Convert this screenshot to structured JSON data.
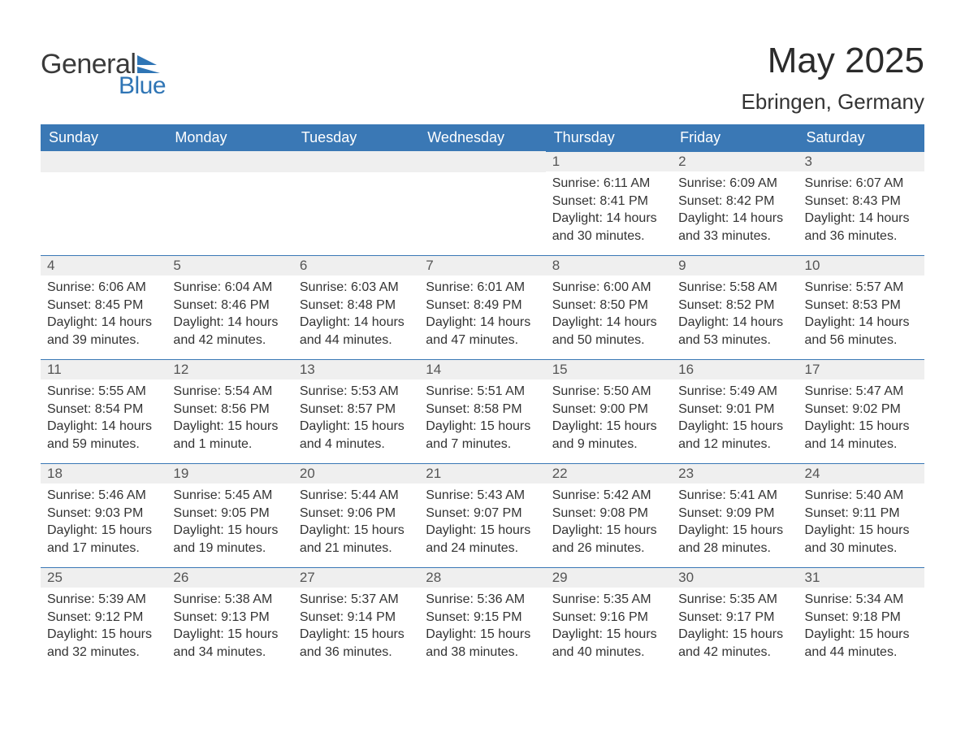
{
  "brand": {
    "word1": "General",
    "word2": "Blue",
    "text_color": "#3a3a3a",
    "accent_color": "#2f75b5"
  },
  "title": "May 2025",
  "location": "Ebringen, Germany",
  "colors": {
    "header_bg": "#3a78b5",
    "header_text": "#ffffff",
    "day_header_bg": "#efefef",
    "day_header_border": "#3a78b5",
    "text": "#333333",
    "background": "#ffffff"
  },
  "font": {
    "family": "Arial",
    "title_size_pt": 33,
    "location_size_pt": 20,
    "dayname_size_pt": 14,
    "body_size_pt": 12
  },
  "day_names": [
    "Sunday",
    "Monday",
    "Tuesday",
    "Wednesday",
    "Thursday",
    "Friday",
    "Saturday"
  ],
  "labels": {
    "sunrise": "Sunrise",
    "sunset": "Sunset",
    "daylight": "Daylight"
  },
  "weeks": [
    [
      null,
      null,
      null,
      null,
      {
        "n": "1",
        "sunrise": "6:11 AM",
        "sunset": "8:41 PM",
        "daylight": "14 hours and 30 minutes."
      },
      {
        "n": "2",
        "sunrise": "6:09 AM",
        "sunset": "8:42 PM",
        "daylight": "14 hours and 33 minutes."
      },
      {
        "n": "3",
        "sunrise": "6:07 AM",
        "sunset": "8:43 PM",
        "daylight": "14 hours and 36 minutes."
      }
    ],
    [
      {
        "n": "4",
        "sunrise": "6:06 AM",
        "sunset": "8:45 PM",
        "daylight": "14 hours and 39 minutes."
      },
      {
        "n": "5",
        "sunrise": "6:04 AM",
        "sunset": "8:46 PM",
        "daylight": "14 hours and 42 minutes."
      },
      {
        "n": "6",
        "sunrise": "6:03 AM",
        "sunset": "8:48 PM",
        "daylight": "14 hours and 44 minutes."
      },
      {
        "n": "7",
        "sunrise": "6:01 AM",
        "sunset": "8:49 PM",
        "daylight": "14 hours and 47 minutes."
      },
      {
        "n": "8",
        "sunrise": "6:00 AM",
        "sunset": "8:50 PM",
        "daylight": "14 hours and 50 minutes."
      },
      {
        "n": "9",
        "sunrise": "5:58 AM",
        "sunset": "8:52 PM",
        "daylight": "14 hours and 53 minutes."
      },
      {
        "n": "10",
        "sunrise": "5:57 AM",
        "sunset": "8:53 PM",
        "daylight": "14 hours and 56 minutes."
      }
    ],
    [
      {
        "n": "11",
        "sunrise": "5:55 AM",
        "sunset": "8:54 PM",
        "daylight": "14 hours and 59 minutes."
      },
      {
        "n": "12",
        "sunrise": "5:54 AM",
        "sunset": "8:56 PM",
        "daylight": "15 hours and 1 minute."
      },
      {
        "n": "13",
        "sunrise": "5:53 AM",
        "sunset": "8:57 PM",
        "daylight": "15 hours and 4 minutes."
      },
      {
        "n": "14",
        "sunrise": "5:51 AM",
        "sunset": "8:58 PM",
        "daylight": "15 hours and 7 minutes."
      },
      {
        "n": "15",
        "sunrise": "5:50 AM",
        "sunset": "9:00 PM",
        "daylight": "15 hours and 9 minutes."
      },
      {
        "n": "16",
        "sunrise": "5:49 AM",
        "sunset": "9:01 PM",
        "daylight": "15 hours and 12 minutes."
      },
      {
        "n": "17",
        "sunrise": "5:47 AM",
        "sunset": "9:02 PM",
        "daylight": "15 hours and 14 minutes."
      }
    ],
    [
      {
        "n": "18",
        "sunrise": "5:46 AM",
        "sunset": "9:03 PM",
        "daylight": "15 hours and 17 minutes."
      },
      {
        "n": "19",
        "sunrise": "5:45 AM",
        "sunset": "9:05 PM",
        "daylight": "15 hours and 19 minutes."
      },
      {
        "n": "20",
        "sunrise": "5:44 AM",
        "sunset": "9:06 PM",
        "daylight": "15 hours and 21 minutes."
      },
      {
        "n": "21",
        "sunrise": "5:43 AM",
        "sunset": "9:07 PM",
        "daylight": "15 hours and 24 minutes."
      },
      {
        "n": "22",
        "sunrise": "5:42 AM",
        "sunset": "9:08 PM",
        "daylight": "15 hours and 26 minutes."
      },
      {
        "n": "23",
        "sunrise": "5:41 AM",
        "sunset": "9:09 PM",
        "daylight": "15 hours and 28 minutes."
      },
      {
        "n": "24",
        "sunrise": "5:40 AM",
        "sunset": "9:11 PM",
        "daylight": "15 hours and 30 minutes."
      }
    ],
    [
      {
        "n": "25",
        "sunrise": "5:39 AM",
        "sunset": "9:12 PM",
        "daylight": "15 hours and 32 minutes."
      },
      {
        "n": "26",
        "sunrise": "5:38 AM",
        "sunset": "9:13 PM",
        "daylight": "15 hours and 34 minutes."
      },
      {
        "n": "27",
        "sunrise": "5:37 AM",
        "sunset": "9:14 PM",
        "daylight": "15 hours and 36 minutes."
      },
      {
        "n": "28",
        "sunrise": "5:36 AM",
        "sunset": "9:15 PM",
        "daylight": "15 hours and 38 minutes."
      },
      {
        "n": "29",
        "sunrise": "5:35 AM",
        "sunset": "9:16 PM",
        "daylight": "15 hours and 40 minutes."
      },
      {
        "n": "30",
        "sunrise": "5:35 AM",
        "sunset": "9:17 PM",
        "daylight": "15 hours and 42 minutes."
      },
      {
        "n": "31",
        "sunrise": "5:34 AM",
        "sunset": "9:18 PM",
        "daylight": "15 hours and 44 minutes."
      }
    ]
  ]
}
